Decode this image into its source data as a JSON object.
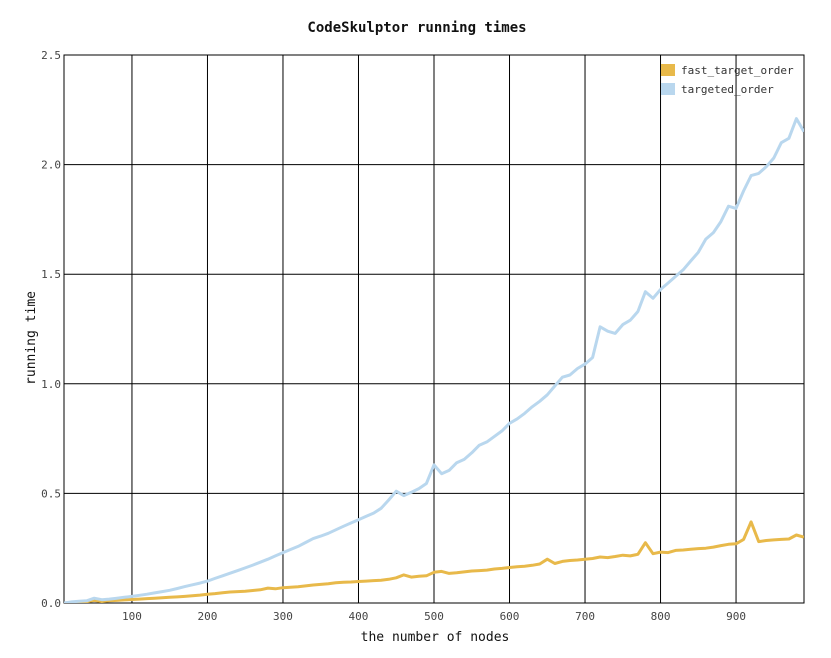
{
  "chart_data": {
    "type": "line",
    "title": "CodeSkulptor running times",
    "xlabel": "the number of nodes",
    "ylabel": "running time",
    "xlim": [
      10,
      990
    ],
    "ylim": [
      0,
      2.5
    ],
    "x_ticks": [
      100,
      200,
      300,
      400,
      500,
      600,
      700,
      800,
      900
    ],
    "y_ticks": [
      "0.0",
      "0.5",
      "1.0",
      "1.5",
      "2.0",
      "2.5"
    ],
    "grid": true,
    "legend_position": "top-right",
    "series": [
      {
        "name": "fast_target_order",
        "color": "#e8b94a",
        "points": [
          [
            10,
            0.0
          ],
          [
            20,
            0.002
          ],
          [
            30,
            0.004
          ],
          [
            40,
            0.006
          ],
          [
            50,
            0.012
          ],
          [
            60,
            0.007
          ],
          [
            70,
            0.01
          ],
          [
            80,
            0.012
          ],
          [
            90,
            0.014
          ],
          [
            100,
            0.016
          ],
          [
            110,
            0.018
          ],
          [
            120,
            0.02
          ],
          [
            130,
            0.022
          ],
          [
            140,
            0.024
          ],
          [
            150,
            0.026
          ],
          [
            160,
            0.028
          ],
          [
            170,
            0.03
          ],
          [
            180,
            0.033
          ],
          [
            190,
            0.036
          ],
          [
            200,
            0.04
          ],
          [
            210,
            0.043
          ],
          [
            220,
            0.047
          ],
          [
            230,
            0.05
          ],
          [
            240,
            0.052
          ],
          [
            250,
            0.054
          ],
          [
            260,
            0.057
          ],
          [
            270,
            0.06
          ],
          [
            280,
            0.068
          ],
          [
            290,
            0.065
          ],
          [
            300,
            0.07
          ],
          [
            310,
            0.072
          ],
          [
            320,
            0.074
          ],
          [
            330,
            0.078
          ],
          [
            340,
            0.082
          ],
          [
            350,
            0.085
          ],
          [
            360,
            0.088
          ],
          [
            370,
            0.092
          ],
          [
            380,
            0.095
          ],
          [
            390,
            0.096
          ],
          [
            400,
            0.098
          ],
          [
            410,
            0.1
          ],
          [
            420,
            0.102
          ],
          [
            430,
            0.104
          ],
          [
            440,
            0.108
          ],
          [
            450,
            0.115
          ],
          [
            460,
            0.128
          ],
          [
            470,
            0.118
          ],
          [
            480,
            0.122
          ],
          [
            490,
            0.124
          ],
          [
            500,
            0.14
          ],
          [
            510,
            0.144
          ],
          [
            520,
            0.135
          ],
          [
            530,
            0.138
          ],
          [
            540,
            0.142
          ],
          [
            550,
            0.146
          ],
          [
            560,
            0.148
          ],
          [
            570,
            0.15
          ],
          [
            580,
            0.155
          ],
          [
            590,
            0.158
          ],
          [
            600,
            0.162
          ],
          [
            610,
            0.165
          ],
          [
            620,
            0.168
          ],
          [
            630,
            0.172
          ],
          [
            640,
            0.178
          ],
          [
            650,
            0.2
          ],
          [
            660,
            0.18
          ],
          [
            670,
            0.19
          ],
          [
            680,
            0.194
          ],
          [
            690,
            0.196
          ],
          [
            700,
            0.2
          ],
          [
            710,
            0.203
          ],
          [
            720,
            0.21
          ],
          [
            730,
            0.207
          ],
          [
            740,
            0.212
          ],
          [
            750,
            0.218
          ],
          [
            760,
            0.215
          ],
          [
            770,
            0.222
          ],
          [
            780,
            0.275
          ],
          [
            790,
            0.225
          ],
          [
            800,
            0.232
          ],
          [
            810,
            0.23
          ],
          [
            820,
            0.24
          ],
          [
            830,
            0.242
          ],
          [
            840,
            0.245
          ],
          [
            850,
            0.248
          ],
          [
            860,
            0.25
          ],
          [
            870,
            0.255
          ],
          [
            880,
            0.262
          ],
          [
            890,
            0.268
          ],
          [
            900,
            0.27
          ],
          [
            910,
            0.29
          ],
          [
            920,
            0.37
          ],
          [
            930,
            0.28
          ],
          [
            940,
            0.285
          ],
          [
            950,
            0.288
          ],
          [
            960,
            0.29
          ],
          [
            970,
            0.292
          ],
          [
            980,
            0.31
          ],
          [
            990,
            0.3
          ]
        ]
      },
      {
        "name": "targeted_order",
        "color": "#b9d7ee",
        "points": [
          [
            10,
            0.0
          ],
          [
            20,
            0.005
          ],
          [
            30,
            0.008
          ],
          [
            40,
            0.01
          ],
          [
            50,
            0.022
          ],
          [
            60,
            0.015
          ],
          [
            70,
            0.018
          ],
          [
            80,
            0.022
          ],
          [
            90,
            0.026
          ],
          [
            100,
            0.03
          ],
          [
            110,
            0.035
          ],
          [
            120,
            0.04
          ],
          [
            130,
            0.046
          ],
          [
            140,
            0.052
          ],
          [
            150,
            0.058
          ],
          [
            160,
            0.066
          ],
          [
            170,
            0.075
          ],
          [
            180,
            0.083
          ],
          [
            190,
            0.091
          ],
          [
            200,
            0.1
          ],
          [
            210,
            0.112
          ],
          [
            220,
            0.124
          ],
          [
            230,
            0.136
          ],
          [
            240,
            0.148
          ],
          [
            250,
            0.16
          ],
          [
            260,
            0.173
          ],
          [
            270,
            0.186
          ],
          [
            280,
            0.2
          ],
          [
            290,
            0.215
          ],
          [
            300,
            0.23
          ],
          [
            310,
            0.244
          ],
          [
            320,
            0.258
          ],
          [
            330,
            0.276
          ],
          [
            340,
            0.294
          ],
          [
            350,
            0.305
          ],
          [
            360,
            0.318
          ],
          [
            370,
            0.334
          ],
          [
            380,
            0.35
          ],
          [
            390,
            0.365
          ],
          [
            400,
            0.38
          ],
          [
            410,
            0.395
          ],
          [
            420,
            0.41
          ],
          [
            430,
            0.432
          ],
          [
            440,
            0.47
          ],
          [
            450,
            0.51
          ],
          [
            460,
            0.49
          ],
          [
            470,
            0.505
          ],
          [
            480,
            0.522
          ],
          [
            490,
            0.545
          ],
          [
            500,
            0.63
          ],
          [
            510,
            0.59
          ],
          [
            520,
            0.605
          ],
          [
            530,
            0.64
          ],
          [
            540,
            0.655
          ],
          [
            550,
            0.685
          ],
          [
            560,
            0.72
          ],
          [
            570,
            0.735
          ],
          [
            580,
            0.76
          ],
          [
            590,
            0.785
          ],
          [
            600,
            0.82
          ],
          [
            610,
            0.84
          ],
          [
            620,
            0.865
          ],
          [
            630,
            0.895
          ],
          [
            640,
            0.92
          ],
          [
            650,
            0.95
          ],
          [
            660,
            0.99
          ],
          [
            670,
            1.03
          ],
          [
            680,
            1.04
          ],
          [
            690,
            1.07
          ],
          [
            700,
            1.09
          ],
          [
            710,
            1.12
          ],
          [
            720,
            1.26
          ],
          [
            730,
            1.24
          ],
          [
            740,
            1.23
          ],
          [
            750,
            1.27
          ],
          [
            760,
            1.29
          ],
          [
            770,
            1.33
          ],
          [
            780,
            1.42
          ],
          [
            790,
            1.39
          ],
          [
            800,
            1.43
          ],
          [
            810,
            1.46
          ],
          [
            820,
            1.49
          ],
          [
            830,
            1.52
          ],
          [
            840,
            1.56
          ],
          [
            850,
            1.6
          ],
          [
            860,
            1.66
          ],
          [
            870,
            1.69
          ],
          [
            880,
            1.74
          ],
          [
            890,
            1.81
          ],
          [
            900,
            1.8
          ],
          [
            910,
            1.88
          ],
          [
            920,
            1.95
          ],
          [
            930,
            1.96
          ],
          [
            940,
            1.99
          ],
          [
            950,
            2.03
          ],
          [
            960,
            2.1
          ],
          [
            970,
            2.12
          ],
          [
            980,
            2.21
          ],
          [
            990,
            2.15
          ]
        ]
      }
    ]
  }
}
